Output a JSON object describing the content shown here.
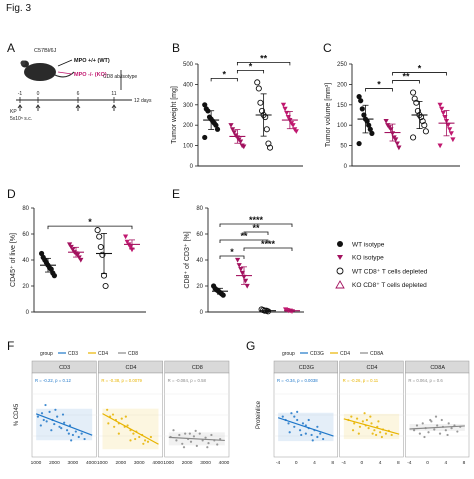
{
  "figure_title": "Fig. 3",
  "panels": [
    {
      "id": "A",
      "label": "A"
    },
    {
      "id": "B",
      "label": "B"
    },
    {
      "id": "C",
      "label": "C"
    },
    {
      "id": "D",
      "label": "D"
    },
    {
      "id": "E",
      "label": "E"
    },
    {
      "id": "F",
      "label": "F"
    },
    {
      "id": "G",
      "label": "G"
    }
  ],
  "panel_a": {
    "strain": "C57Bl/6J",
    "wt_label": "MPO +/+ (WT)",
    "ko_label": "MPO -/- (KO)",
    "treatment": "CD8 ab/isotype",
    "injection": "KP",
    "dose": "5x10⁵ s.c.",
    "timeline_ticks": [
      "-1",
      "0",
      "6",
      "11"
    ],
    "timeline_end": "12 days",
    "colors": {
      "wt": "#111111",
      "ko": "#c0186f"
    }
  },
  "legend": {
    "items": [
      {
        "label": "WT isotype",
        "marker": "circle-filled",
        "color": "#111111"
      },
      {
        "label": "KO isotype",
        "marker": "triangle-down-filled",
        "color": "#a3125f"
      },
      {
        "label": "WT CD8⁺ T cells depleted",
        "marker": "circle-open",
        "color": "#111111"
      },
      {
        "label": "KO CD8⁺ T cells depleted",
        "marker": "triangle-open",
        "color": "#a3125f"
      }
    ]
  },
  "chart_data": [
    {
      "panel": "B",
      "type": "scatter",
      "ylabel": "Tumor weight [mg]",
      "ylim": [
        0,
        500
      ],
      "yticks": [
        0,
        100,
        200,
        300,
        400,
        500
      ],
      "groups": [
        {
          "group": "WT isotype",
          "values": [
            300,
            280,
            270,
            240,
            230,
            220,
            210,
            200,
            180,
            140
          ],
          "mean": 225
        },
        {
          "group": "KO isotype",
          "values": [
            200,
            180,
            165,
            150,
            140,
            130,
            120,
            100,
            95
          ],
          "mean": 145
        },
        {
          "group": "WT CD8 depleted",
          "values": [
            410,
            380,
            310,
            270,
            250,
            240,
            180,
            110,
            90
          ],
          "mean": 250
        },
        {
          "group": "KO CD8 depleted",
          "values": [
            300,
            280,
            260,
            240,
            225,
            210,
            200,
            180,
            170
          ],
          "mean": 225
        }
      ],
      "significance": [
        {
          "from": 0,
          "to": 1,
          "label": "*",
          "level": 1
        },
        {
          "from": 1,
          "to": 2,
          "label": "*",
          "level": 2
        },
        {
          "from": 1,
          "to": 3,
          "label": "**",
          "level": 3
        }
      ]
    },
    {
      "panel": "C",
      "type": "scatter",
      "ylabel": "Tumor volume [mm³]",
      "ylim": [
        0,
        250
      ],
      "yticks": [
        0,
        50,
        100,
        150,
        200,
        250
      ],
      "groups": [
        {
          "group": "WT isotype",
          "values": [
            170,
            160,
            140,
            125,
            115,
            110,
            100,
            90,
            80,
            55
          ],
          "mean": 115
        },
        {
          "group": "KO isotype",
          "values": [
            110,
            100,
            95,
            90,
            80,
            70,
            65,
            55,
            45
          ],
          "mean": 82
        },
        {
          "group": "WT CD8 depleted",
          "values": [
            180,
            165,
            155,
            135,
            125,
            120,
            110,
            100,
            85,
            70
          ],
          "mean": 125
        },
        {
          "group": "KO CD8 depleted",
          "values": [
            150,
            140,
            130,
            120,
            110,
            100,
            90,
            80,
            65,
            50
          ],
          "mean": 105
        }
      ],
      "significance": [
        {
          "from": 0,
          "to": 1,
          "label": "*",
          "level": 1
        },
        {
          "from": 1,
          "to": 2,
          "label": "**",
          "level": 2
        },
        {
          "from": 1,
          "to": 3,
          "label": "*",
          "level": 3
        }
      ]
    },
    {
      "panel": "D",
      "type": "scatter",
      "ylabel": "CD45⁺ of live [%]",
      "ylim": [
        0,
        80
      ],
      "yticks": [
        0,
        20,
        40,
        60,
        80
      ],
      "groups": [
        {
          "group": "WT isotype",
          "values": [
            45,
            42,
            40,
            38,
            36,
            34,
            33,
            30,
            28
          ],
          "mean": 36
        },
        {
          "group": "KO isotype",
          "values": [
            52,
            50,
            48,
            46,
            45,
            44,
            42,
            40
          ],
          "mean": 46
        },
        {
          "group": "WT CD8 depleted",
          "values": [
            63,
            58,
            50,
            44,
            28,
            20
          ],
          "mean": 45
        },
        {
          "group": "KO CD8 depleted",
          "values": [
            58,
            54,
            52,
            50,
            48
          ],
          "mean": 52
        }
      ],
      "significance": [
        {
          "from": 0,
          "to": 3,
          "label": "*",
          "level": 1
        }
      ]
    },
    {
      "panel": "E",
      "type": "scatter",
      "ylabel": "CD8⁺ of CD3⁺ [%]",
      "ylim": [
        0,
        80
      ],
      "yticks": [
        0,
        20,
        40,
        60,
        80
      ],
      "groups": [
        {
          "group": "WT isotype",
          "values": [
            20,
            18,
            17,
            16,
            15,
            14,
            13
          ],
          "mean": 16
        },
        {
          "group": "KO isotype",
          "values": [
            40,
            36,
            33,
            30,
            27,
            24,
            20
          ],
          "mean": 28
        },
        {
          "group": "WT CD8 depleted",
          "values": [
            2,
            1.5,
            1,
            1,
            0.5
          ],
          "mean": 1
        },
        {
          "group": "KO CD8 depleted",
          "values": [
            2,
            1.5,
            1,
            1,
            0.5
          ],
          "mean": 1
        }
      ],
      "significance": [
        {
          "from": 0,
          "to": 1,
          "label": "*",
          "level": 1
        },
        {
          "from": 1,
          "to": 3,
          "label": "****",
          "level": 2
        },
        {
          "from": 0,
          "to": 2,
          "label": "**",
          "level": 3
        },
        {
          "from": 1,
          "to": 2,
          "label": "**",
          "level": 4
        },
        {
          "from": 0,
          "to": 3,
          "label": "****",
          "level": 5
        }
      ]
    },
    {
      "panel": "F",
      "type": "scatter",
      "legend_title": "group",
      "legend": [
        {
          "name": "CD3",
          "color": "#1f77c9"
        },
        {
          "name": "CD4",
          "color": "#e8b400"
        },
        {
          "name": "CD8",
          "color": "#888888"
        }
      ],
      "ylabel": "% CD45",
      "x_ticks": [
        "1000",
        "2000",
        "3000",
        "4000"
      ],
      "facets": [
        {
          "title": "CD3",
          "color": "#1f77c9",
          "annotation": "R = -0.22, p = 0.12",
          "slope": -0.35,
          "points": [
            [
              0.05,
              0.55
            ],
            [
              0.12,
              0.6
            ],
            [
              0.18,
              0.72
            ],
            [
              0.2,
              0.48
            ],
            [
              0.25,
              0.62
            ],
            [
              0.3,
              0.5
            ],
            [
              0.33,
              0.44
            ],
            [
              0.38,
              0.55
            ],
            [
              0.42,
              0.4
            ],
            [
              0.45,
              0.38
            ],
            [
              0.5,
              0.46
            ],
            [
              0.55,
              0.35
            ],
            [
              0.58,
              0.3
            ],
            [
              0.6,
              0.42
            ],
            [
              0.65,
              0.28
            ],
            [
              0.7,
              0.33
            ],
            [
              0.75,
              0.25
            ],
            [
              0.8,
              0.3
            ],
            [
              0.1,
              0.42
            ],
            [
              0.28,
              0.35
            ],
            [
              0.48,
              0.58
            ],
            [
              0.62,
              0.2
            ],
            [
              0.85,
              0.22
            ],
            [
              0.35,
              0.65
            ],
            [
              0.15,
              0.5
            ]
          ]
        },
        {
          "title": "CD4",
          "color": "#e8b400",
          "annotation": "R = -0.38, p = 0.0079",
          "slope": -0.5,
          "points": [
            [
              0.1,
              0.65
            ],
            [
              0.15,
              0.55
            ],
            [
              0.2,
              0.58
            ],
            [
              0.25,
              0.5
            ],
            [
              0.3,
              0.45
            ],
            [
              0.35,
              0.52
            ],
            [
              0.4,
              0.4
            ],
            [
              0.45,
              0.42
            ],
            [
              0.5,
              0.35
            ],
            [
              0.55,
              0.3
            ],
            [
              0.6,
              0.33
            ],
            [
              0.65,
              0.25
            ],
            [
              0.7,
              0.28
            ],
            [
              0.75,
              0.2
            ],
            [
              0.8,
              0.18
            ],
            [
              0.22,
              0.4
            ],
            [
              0.42,
              0.55
            ],
            [
              0.58,
              0.22
            ],
            [
              0.72,
              0.15
            ],
            [
              0.85,
              0.25
            ],
            [
              0.3,
              0.3
            ],
            [
              0.5,
              0.2
            ],
            [
              0.12,
              0.45
            ]
          ]
        },
        {
          "title": "CD8",
          "color": "#888888",
          "annotation": "R = -0.084, p = 0.58",
          "slope": -0.05,
          "points": [
            [
              0.05,
              0.25
            ],
            [
              0.1,
              0.35
            ],
            [
              0.15,
              0.2
            ],
            [
              0.2,
              0.28
            ],
            [
              0.25,
              0.15
            ],
            [
              0.3,
              0.3
            ],
            [
              0.35,
              0.22
            ],
            [
              0.4,
              0.18
            ],
            [
              0.45,
              0.26
            ],
            [
              0.5,
              0.12
            ],
            [
              0.55,
              0.3
            ],
            [
              0.6,
              0.2
            ],
            [
              0.65,
              0.24
            ],
            [
              0.7,
              0.16
            ],
            [
              0.75,
              0.28
            ],
            [
              0.8,
              0.2
            ],
            [
              0.85,
              0.14
            ],
            [
              0.9,
              0.22
            ],
            [
              0.28,
              0.1
            ],
            [
              0.48,
              0.34
            ],
            [
              0.68,
              0.1
            ],
            [
              0.38,
              0.3
            ]
          ]
        }
      ]
    },
    {
      "panel": "G",
      "type": "scatter",
      "legend_title": "group",
      "legend": [
        {
          "name": "CD3G",
          "color": "#1f77c9"
        },
        {
          "name": "CD4",
          "color": "#e8b400"
        },
        {
          "name": "CD8A",
          "color": "#888888"
        }
      ],
      "ylabel": "Proteinlice",
      "x_ticks": [
        "-4",
        "0",
        "4",
        "8"
      ],
      "facets": [
        {
          "title": "CD3G",
          "color": "#1f77c9",
          "annotation": "R = -0.34, p = 0.0038",
          "slope": -0.3,
          "points": [
            [
              0.1,
              0.55
            ],
            [
              0.15,
              0.5
            ],
            [
              0.2,
              0.45
            ],
            [
              0.25,
              0.6
            ],
            [
              0.3,
              0.4
            ],
            [
              0.35,
              0.5
            ],
            [
              0.4,
              0.35
            ],
            [
              0.45,
              0.45
            ],
            [
              0.5,
              0.3
            ],
            [
              0.55,
              0.38
            ],
            [
              0.6,
              0.28
            ],
            [
              0.65,
              0.35
            ],
            [
              0.7,
              0.25
            ],
            [
              0.75,
              0.3
            ],
            [
              0.8,
              0.22
            ],
            [
              0.3,
              0.55
            ],
            [
              0.5,
              0.42
            ],
            [
              0.62,
              0.2
            ],
            [
              0.22,
              0.32
            ],
            [
              0.42,
              0.28
            ],
            [
              0.35,
              0.62
            ],
            [
              0.55,
              0.5
            ],
            [
              0.7,
              0.4
            ]
          ]
        },
        {
          "title": "CD4",
          "color": "#e8b400",
          "annotation": "R = -0.26, p = 0.11",
          "slope": -0.25,
          "points": [
            [
              0.1,
              0.5
            ],
            [
              0.15,
              0.55
            ],
            [
              0.2,
              0.45
            ],
            [
              0.25,
              0.52
            ],
            [
              0.3,
              0.4
            ],
            [
              0.35,
              0.48
            ],
            [
              0.4,
              0.42
            ],
            [
              0.45,
              0.38
            ],
            [
              0.5,
              0.45
            ],
            [
              0.55,
              0.35
            ],
            [
              0.6,
              0.4
            ],
            [
              0.65,
              0.32
            ],
            [
              0.7,
              0.36
            ],
            [
              0.75,
              0.3
            ],
            [
              0.8,
              0.34
            ],
            [
              0.28,
              0.3
            ],
            [
              0.48,
              0.55
            ],
            [
              0.58,
              0.28
            ],
            [
              0.38,
              0.6
            ],
            [
              0.68,
              0.25
            ],
            [
              0.18,
              0.35
            ],
            [
              0.52,
              0.3
            ],
            [
              0.85,
              0.28
            ],
            [
              0.42,
              0.5
            ],
            [
              0.62,
              0.48
            ]
          ]
        },
        {
          "title": "CD8A",
          "color": "#888888",
          "annotation": "R = 0.064, p = 0.6",
          "slope": 0.05,
          "points": [
            [
              0.1,
              0.35
            ],
            [
              0.15,
              0.42
            ],
            [
              0.2,
              0.3
            ],
            [
              0.25,
              0.45
            ],
            [
              0.3,
              0.38
            ],
            [
              0.35,
              0.32
            ],
            [
              0.4,
              0.48
            ],
            [
              0.45,
              0.36
            ],
            [
              0.5,
              0.42
            ],
            [
              0.55,
              0.3
            ],
            [
              0.6,
              0.4
            ],
            [
              0.65,
              0.35
            ],
            [
              0.7,
              0.45
            ],
            [
              0.75,
              0.38
            ],
            [
              0.8,
              0.42
            ],
            [
              0.85,
              0.33
            ],
            [
              0.9,
              0.4
            ],
            [
              0.28,
              0.25
            ],
            [
              0.48,
              0.55
            ],
            [
              0.68,
              0.28
            ],
            [
              0.38,
              0.5
            ],
            [
              0.58,
              0.5
            ]
          ]
        }
      ]
    }
  ]
}
